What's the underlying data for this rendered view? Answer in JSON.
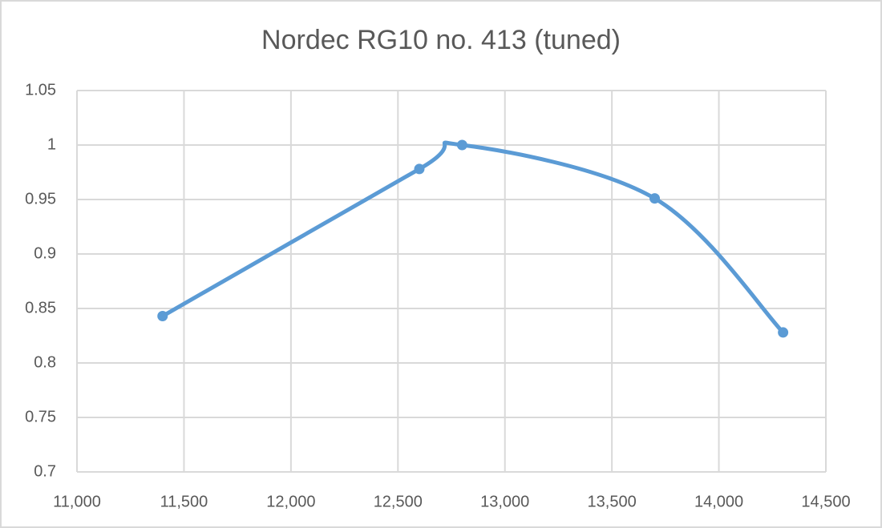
{
  "chart_data": {
    "type": "scatter",
    "title": "Nordec RG10 no. 413 (tuned)",
    "series": [
      {
        "name": null,
        "color": "#5b9bd5",
        "x": [
          11400,
          12600,
          12800,
          13700,
          14300
        ],
        "values": [
          0.843,
          0.978,
          1.0,
          0.951,
          0.828
        ]
      }
    ],
    "xlim": [
      11000,
      14500
    ],
    "xticks": [
      {
        "value": 11000,
        "label": "11,000"
      },
      {
        "value": 11500,
        "label": "11,500"
      },
      {
        "value": 12000,
        "label": "12,000"
      },
      {
        "value": 12500,
        "label": "12,500"
      },
      {
        "value": 13000,
        "label": "13,000"
      },
      {
        "value": 13500,
        "label": "13,500"
      },
      {
        "value": 14000,
        "label": "14,000"
      },
      {
        "value": 14500,
        "label": "14,500"
      }
    ],
    "ylim": [
      0.7,
      1.05
    ],
    "yticks": [
      0.7,
      0.75,
      0.8,
      0.85,
      0.9,
      0.95,
      1,
      1.05
    ],
    "grid": true,
    "smooth": true
  }
}
